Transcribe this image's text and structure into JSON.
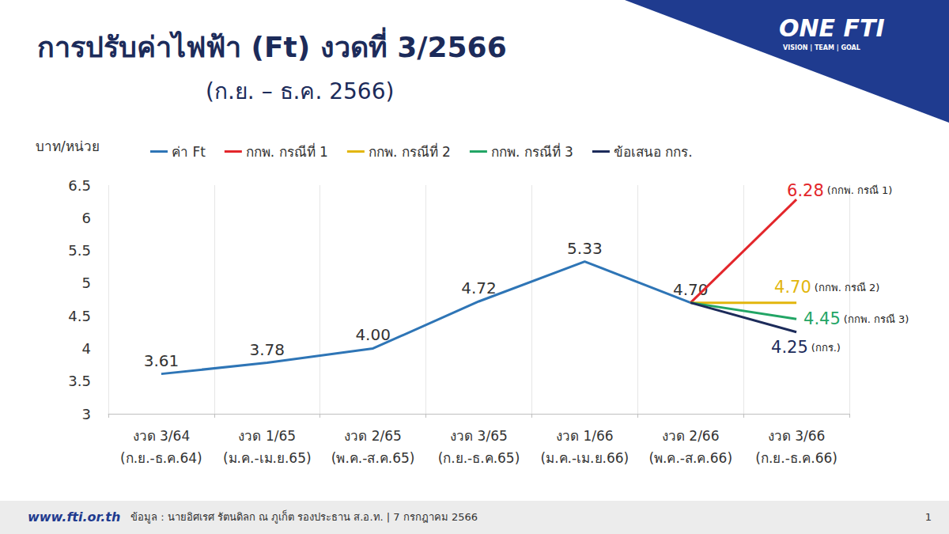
{
  "chart_data": {
    "type": "line",
    "title": "การปรับค่าไฟฟ้า (Ft) งวดที่ 3/2566",
    "subtitle": "(ก.ย. – ธ.ค. 2566)",
    "y_label": "บาท/หน่วย",
    "categories": [
      "งวด 3/64\n(ก.ย.-ธ.ค.64)",
      "งวด 1/65\n(ม.ค.-เม.ย.65)",
      "งวด 2/65\n(พ.ค.-ส.ค.65)",
      "งวด 3/65\n(ก.ย.-ธ.ค.65)",
      "งวด 1/66\n(ม.ค.-เม.ย.66)",
      "งวด 2/66\n(พ.ค.-ส.ค.66)",
      "งวด 3/66\n(ก.ย.-ธ.ค.66)"
    ],
    "series": [
      {
        "name": "ค่า Ft",
        "color": "#2e75b6",
        "values": [
          3.61,
          3.78,
          4.0,
          4.72,
          5.33,
          4.7,
          null
        ],
        "value_labels": [
          "3.61",
          "3.78",
          "4.00",
          "4.72",
          "5.33",
          "4.70",
          null
        ]
      },
      {
        "name": "กกพ. กรณีที่ 1",
        "color": "#e3262b",
        "values": [
          null,
          null,
          null,
          null,
          null,
          4.7,
          6.28
        ],
        "value_labels": [
          null,
          null,
          null,
          null,
          null,
          null,
          "6.28"
        ],
        "annotation": "(กกพ. กรณี 1)"
      },
      {
        "name": "กกพ. กรณีที่ 2",
        "color": "#e2b60c",
        "values": [
          null,
          null,
          null,
          null,
          null,
          4.7,
          4.7
        ],
        "value_labels": [
          null,
          null,
          null,
          null,
          null,
          null,
          "4.70"
        ],
        "annotation": "(กกพ. กรณี 2)"
      },
      {
        "name": "กกพ. กรณีที่ 3",
        "color": "#22a565",
        "values": [
          null,
          null,
          null,
          null,
          null,
          4.7,
          4.45
        ],
        "value_labels": [
          null,
          null,
          null,
          null,
          null,
          null,
          "4.45"
        ],
        "annotation": "(กกพ. กรณี 3)"
      },
      {
        "name": "ข้อเสนอ กกร.",
        "color": "#1c2b5a",
        "values": [
          null,
          null,
          null,
          null,
          null,
          4.7,
          4.25
        ],
        "value_labels": [
          null,
          null,
          null,
          null,
          null,
          null,
          "4.25"
        ],
        "annotation": "(กกร.)"
      }
    ],
    "ylim": [
      3,
      6.5
    ],
    "yticks": [
      3,
      3.5,
      4,
      4.5,
      5,
      5.5,
      6,
      6.5
    ],
    "grid": true,
    "legend": "top",
    "data_labels": true
  },
  "page": {
    "logo": "ONE FTI",
    "tagline": "VISION | TEAM | GOAL",
    "website": "www.fti.or.th",
    "source": "ข้อมูล : นายอิศเรศ รัตนดิลก ณ ภูเก็ต รองประธาน ส.อ.ท. | 7 กรกฎาคม 2566",
    "page_number": "1"
  }
}
